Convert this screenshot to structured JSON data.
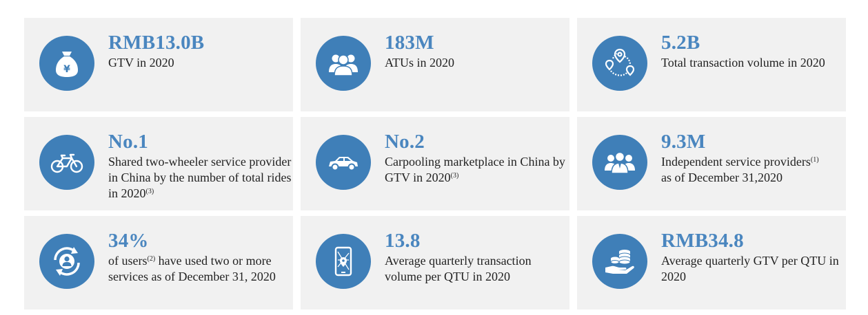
{
  "cards": [
    {
      "icon": "money-bag-icon",
      "value": "RMB13.0B",
      "desc": "GTV in 2020"
    },
    {
      "icon": "users-group-icon",
      "value": "183M",
      "desc": "ATUs in 2020"
    },
    {
      "icon": "location-route-icon",
      "value": "5.2B",
      "desc": "Total transaction volume in 2020"
    },
    {
      "icon": "bicycle-icon",
      "value": "No.1",
      "desc": "Shared two-wheeler service provider in China by the number of total rides in 2020",
      "note": "(3)"
    },
    {
      "icon": "car-icon",
      "value": "No.2",
      "desc": "Carpooling marketplace in China by GTV in 2020",
      "note": "(3)"
    },
    {
      "icon": "service-providers-icon",
      "value": "9.3M",
      "desc_a": "Independent service providers",
      "note": "(1)",
      "desc_b": "as of December 31,2020"
    },
    {
      "icon": "user-cycle-icon",
      "value": "34%",
      "desc_a": "of users",
      "note": "(2)",
      "desc_b": " have used two or more services as of December 31, 2020"
    },
    {
      "icon": "phone-map-icon",
      "value": "13.8",
      "desc": "Average quarterly transaction volume per QTU in 2020"
    },
    {
      "icon": "coins-hand-icon",
      "value": "RMB34.8",
      "desc": "Average quarterly GTV per QTU in 2020"
    }
  ]
}
